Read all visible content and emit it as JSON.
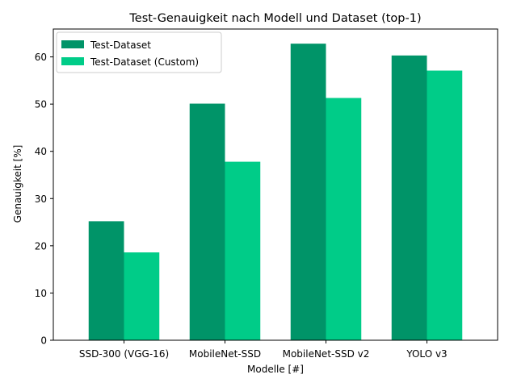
{
  "chart_data": {
    "type": "bar",
    "title": "Test-Genauigkeit nach Modell und Dataset (top-1)",
    "xlabel": "Modelle [#]",
    "ylabel": "Genauigkeit [%]",
    "categories": [
      "SSD-300 (VGG-16)",
      "MobileNet-SSD",
      "MobileNet-SSD v2",
      "YOLO v3"
    ],
    "series": [
      {
        "name": "Test-Dataset",
        "color": "#009468",
        "values": [
          25.2,
          50.1,
          62.8,
          60.3
        ]
      },
      {
        "name": "Test-Dataset (Custom)",
        "color": "#00cc88",
        "values": [
          18.6,
          37.8,
          51.3,
          57.1
        ]
      }
    ],
    "ylim": [
      0,
      65.9
    ],
    "yticks": [
      0,
      10,
      20,
      30,
      40,
      50,
      60
    ],
    "legend": "top-left",
    "grid": false
  }
}
